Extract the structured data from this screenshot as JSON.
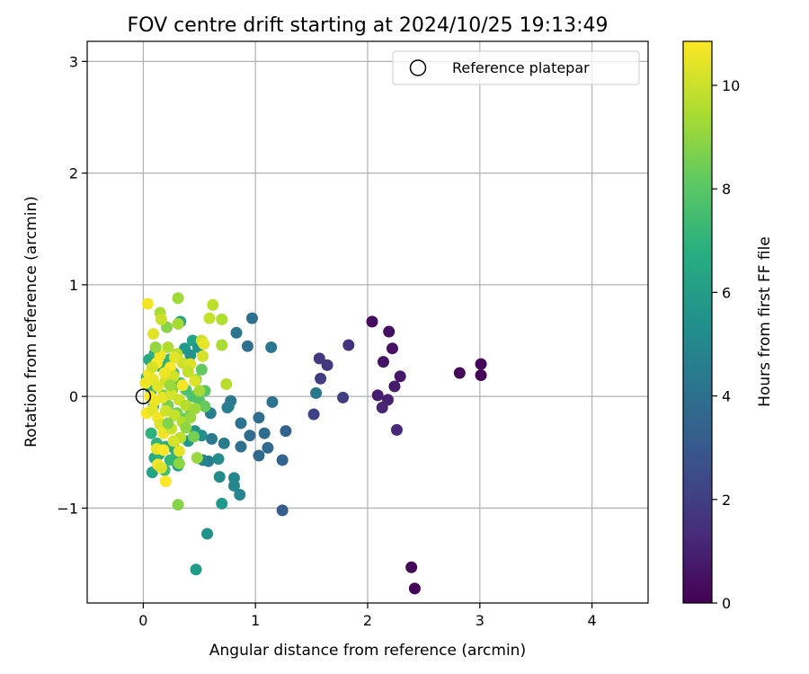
{
  "chart_data": {
    "type": "scatter",
    "title": "FOV centre drift starting at 2024/10/25 19:13:49",
    "xlabel": "Angular distance from reference (arcmin)",
    "ylabel": "Rotation from reference (arcmin)",
    "xlim": [
      -0.5,
      4.5
    ],
    "ylim": [
      -1.85,
      3.18
    ],
    "xticks": [
      0,
      1,
      2,
      3,
      4
    ],
    "yticks": [
      -1,
      0,
      1,
      2,
      3
    ],
    "xtick_labels": [
      "0",
      "1",
      "2",
      "3",
      "4"
    ],
    "ytick_labels": [
      "−1",
      "0",
      "1",
      "2",
      "3"
    ],
    "grid": true,
    "colormap": "viridis",
    "colorbar": {
      "label": "Hours from first FF file",
      "range": [
        0,
        10.85
      ],
      "ticks": [
        0,
        2,
        4,
        6,
        8,
        10
      ],
      "tick_labels": [
        "0",
        "2",
        "4",
        "6",
        "8",
        "10"
      ]
    },
    "reference": {
      "x": 0.0,
      "y": 0.0,
      "label": "Reference platepar",
      "edge_color": "#000000",
      "fill": "none"
    },
    "legend": {
      "placement": "upper right",
      "entries": [
        "Reference platepar"
      ]
    },
    "points": [
      {
        "x": 2.42,
        "y": -1.72,
        "h": 0.1
      },
      {
        "x": 2.39,
        "y": -1.53,
        "h": 0.2
      },
      {
        "x": 3.01,
        "y": 0.19,
        "h": 0.1
      },
      {
        "x": 3.01,
        "y": 0.29,
        "h": 0.15
      },
      {
        "x": 2.82,
        "y": 0.21,
        "h": 0.2
      },
      {
        "x": 2.04,
        "y": 0.67,
        "h": 0.3
      },
      {
        "x": 2.19,
        "y": 0.58,
        "h": 0.4
      },
      {
        "x": 2.22,
        "y": 0.43,
        "h": 0.5
      },
      {
        "x": 2.14,
        "y": 0.31,
        "h": 0.6
      },
      {
        "x": 2.29,
        "y": 0.18,
        "h": 0.7
      },
      {
        "x": 2.24,
        "y": 0.09,
        "h": 0.8
      },
      {
        "x": 2.09,
        "y": 0.01,
        "h": 0.9
      },
      {
        "x": 2.18,
        "y": -0.03,
        "h": 1.0
      },
      {
        "x": 2.13,
        "y": -0.1,
        "h": 1.1
      },
      {
        "x": 2.26,
        "y": -0.3,
        "h": 1.2
      },
      {
        "x": 1.83,
        "y": 0.46,
        "h": 1.6
      },
      {
        "x": 1.57,
        "y": 0.34,
        "h": 1.8
      },
      {
        "x": 1.64,
        "y": 0.28,
        "h": 1.7
      },
      {
        "x": 1.58,
        "y": 0.16,
        "h": 1.9
      },
      {
        "x": 1.78,
        "y": -0.01,
        "h": 2.0
      },
      {
        "x": 1.52,
        "y": -0.16,
        "h": 2.1
      },
      {
        "x": 1.24,
        "y": -1.02,
        "h": 3.2
      },
      {
        "x": 1.27,
        "y": -0.31,
        "h": 3.4
      },
      {
        "x": 1.24,
        "y": -0.57,
        "h": 3.5
      },
      {
        "x": 1.03,
        "y": -0.53,
        "h": 3.6
      },
      {
        "x": 1.11,
        "y": -0.46,
        "h": 3.7
      },
      {
        "x": 1.08,
        "y": -0.33,
        "h": 3.8
      },
      {
        "x": 1.03,
        "y": -0.19,
        "h": 3.9
      },
      {
        "x": 0.95,
        "y": -0.35,
        "h": 3.8
      },
      {
        "x": 0.87,
        "y": -0.45,
        "h": 4.0
      },
      {
        "x": 0.87,
        "y": -0.24,
        "h": 4.1
      },
      {
        "x": 1.14,
        "y": 0.44,
        "h": 4.2
      },
      {
        "x": 1.15,
        "y": -0.05,
        "h": 4.1
      },
      {
        "x": 0.97,
        "y": 0.7,
        "h": 3.9
      },
      {
        "x": 0.93,
        "y": 0.45,
        "h": 4.0
      },
      {
        "x": 0.83,
        "y": 0.57,
        "h": 4.2
      },
      {
        "x": 1.54,
        "y": 0.03,
        "h": 4.3
      },
      {
        "x": 0.78,
        "y": -0.04,
        "h": 4.4
      },
      {
        "x": 0.75,
        "y": -0.1,
        "h": 4.5
      },
      {
        "x": 0.76,
        "y": -0.09,
        "h": 4.6
      },
      {
        "x": 0.72,
        "y": -0.42,
        "h": 4.5
      },
      {
        "x": 0.61,
        "y": -0.38,
        "h": 4.4
      },
      {
        "x": 0.6,
        "y": -0.15,
        "h": 4.7
      },
      {
        "x": 0.58,
        "y": -0.58,
        "h": 4.6
      },
      {
        "x": 0.53,
        "y": -0.57,
        "h": 4.8
      },
      {
        "x": 0.86,
        "y": -0.88,
        "h": 4.9
      },
      {
        "x": 0.81,
        "y": -0.8,
        "h": 5.0
      },
      {
        "x": 0.81,
        "y": -0.73,
        "h": 5.0
      },
      {
        "x": 0.68,
        "y": -0.72,
        "h": 5.2
      },
      {
        "x": 0.67,
        "y": -0.56,
        "h": 5.3
      },
      {
        "x": 0.57,
        "y": -1.23,
        "h": 5.5
      },
      {
        "x": 0.7,
        "y": -0.96,
        "h": 5.8
      },
      {
        "x": 0.47,
        "y": -1.55,
        "h": 6.0
      },
      {
        "x": 0.52,
        "y": -0.35,
        "h": 5.4
      },
      {
        "x": 0.46,
        "y": -0.31,
        "h": 5.6
      },
      {
        "x": 0.4,
        "y": -0.4,
        "h": 5.9
      },
      {
        "x": 0.42,
        "y": 0.37,
        "h": 5.5
      },
      {
        "x": 0.37,
        "y": 0.43,
        "h": 5.8
      },
      {
        "x": 0.44,
        "y": 0.5,
        "h": 6.2
      },
      {
        "x": 0.49,
        "y": 0.44,
        "h": 5.6
      },
      {
        "x": 0.33,
        "y": 0.67,
        "h": 6.4
      },
      {
        "x": 0.31,
        "y": -0.62,
        "h": 6.1
      },
      {
        "x": 0.3,
        "y": -0.52,
        "h": 6.3
      },
      {
        "x": 0.28,
        "y": -0.47,
        "h": 6.5
      },
      {
        "x": 0.08,
        "y": -0.68,
        "h": 6.3
      },
      {
        "x": 0.1,
        "y": -0.55,
        "h": 6.6
      },
      {
        "x": 0.14,
        "y": -0.52,
        "h": 6.8
      },
      {
        "x": 0.07,
        "y": -0.33,
        "h": 6.9
      },
      {
        "x": 0.12,
        "y": -0.42,
        "h": 7.0
      },
      {
        "x": 0.2,
        "y": -0.45,
        "h": 6.7
      },
      {
        "x": 0.24,
        "y": -0.57,
        "h": 7.2
      },
      {
        "x": 0.19,
        "y": -0.66,
        "h": 7.4
      },
      {
        "x": 0.05,
        "y": 0.33,
        "h": 6.5
      },
      {
        "x": 0.1,
        "y": 0.38,
        "h": 6.8
      },
      {
        "x": 0.03,
        "y": 0.17,
        "h": 7.0
      },
      {
        "x": 0.07,
        "y": 0.05,
        "h": 7.1
      },
      {
        "x": 0.09,
        "y": -0.09,
        "h": 7.3
      },
      {
        "x": 0.15,
        "y": 0.27,
        "h": 7.1
      },
      {
        "x": 0.23,
        "y": 0.33,
        "h": 6.9
      },
      {
        "x": 0.27,
        "y": 0.21,
        "h": 7.5
      },
      {
        "x": 0.33,
        "y": 0.12,
        "h": 7.6
      },
      {
        "x": 0.38,
        "y": 0.06,
        "h": 7.7
      },
      {
        "x": 0.44,
        "y": 0.0,
        "h": 7.8
      },
      {
        "x": 0.5,
        "y": -0.04,
        "h": 7.9
      },
      {
        "x": 0.55,
        "y": 0.05,
        "h": 8.0
      },
      {
        "x": 0.52,
        "y": 0.24,
        "h": 8.2
      },
      {
        "x": 0.55,
        "y": -0.09,
        "h": 8.3
      },
      {
        "x": 0.36,
        "y": -0.2,
        "h": 8.1
      },
      {
        "x": 0.42,
        "y": -0.12,
        "h": 8.4
      },
      {
        "x": 0.18,
        "y": 0.01,
        "h": 8.5
      },
      {
        "x": 0.22,
        "y": -0.08,
        "h": 8.6
      },
      {
        "x": 0.26,
        "y": 0.06,
        "h": 8.7
      },
      {
        "x": 0.3,
        "y": -0.15,
        "h": 8.5
      },
      {
        "x": 0.47,
        "y": 0.15,
        "h": 8.8
      },
      {
        "x": 0.21,
        "y": 0.62,
        "h": 8.9
      },
      {
        "x": 0.31,
        "y": -0.97,
        "h": 8.9
      },
      {
        "x": 0.32,
        "y": -0.6,
        "h": 9.0
      },
      {
        "x": 0.48,
        "y": -0.55,
        "h": 9.2
      },
      {
        "x": 0.31,
        "y": 0.88,
        "h": 9.3
      },
      {
        "x": 0.31,
        "y": 0.65,
        "h": 9.4
      },
      {
        "x": 0.7,
        "y": 0.46,
        "h": 9.5
      },
      {
        "x": 0.7,
        "y": 0.69,
        "h": 9.6
      },
      {
        "x": 0.62,
        "y": 0.82,
        "h": 9.8
      },
      {
        "x": 0.59,
        "y": 0.7,
        "h": 9.9
      },
      {
        "x": 0.74,
        "y": 0.11,
        "h": 9.7
      },
      {
        "x": 0.52,
        "y": 0.5,
        "h": 10.0
      },
      {
        "x": 0.53,
        "y": 0.36,
        "h": 10.2
      },
      {
        "x": 0.54,
        "y": 0.47,
        "h": 10.5
      },
      {
        "x": 0.15,
        "y": 0.75,
        "h": 9.5
      },
      {
        "x": 0.16,
        "y": 0.69,
        "h": 10.0
      },
      {
        "x": 0.04,
        "y": 0.83,
        "h": 10.7
      },
      {
        "x": 0.09,
        "y": 0.56,
        "h": 10.4
      },
      {
        "x": 0.22,
        "y": 0.44,
        "h": 9.6
      },
      {
        "x": 0.3,
        "y": 0.38,
        "h": 9.8
      },
      {
        "x": 0.35,
        "y": 0.3,
        "h": 10.1
      },
      {
        "x": 0.42,
        "y": 0.29,
        "h": 10.3
      },
      {
        "x": 0.15,
        "y": 0.37,
        "h": 10.6
      },
      {
        "x": 0.12,
        "y": 0.3,
        "h": 10.8
      },
      {
        "x": 0.05,
        "y": 0.2,
        "h": 10.7
      },
      {
        "x": 0.09,
        "y": 0.15,
        "h": 10.5
      },
      {
        "x": 0.02,
        "y": 0.12,
        "h": 10.6
      },
      {
        "x": 0.13,
        "y": 0.09,
        "h": 10.4
      },
      {
        "x": 0.2,
        "y": 0.14,
        "h": 10.2
      },
      {
        "x": 0.24,
        "y": 0.26,
        "h": 10.8
      },
      {
        "x": 0.27,
        "y": 0.18,
        "h": 10.1
      },
      {
        "x": 0.35,
        "y": 0.1,
        "h": 10.7
      },
      {
        "x": 0.4,
        "y": 0.22,
        "h": 9.9
      },
      {
        "x": 0.46,
        "y": 0.14,
        "h": 10.3
      },
      {
        "x": 0.5,
        "y": 0.05,
        "h": 9.4
      },
      {
        "x": 0.06,
        "y": 0.0,
        "h": 10.8
      },
      {
        "x": 0.1,
        "y": -0.04,
        "h": 10.6
      },
      {
        "x": 0.17,
        "y": -0.01,
        "h": 10.5
      },
      {
        "x": 0.25,
        "y": 0.02,
        "h": 10.2
      },
      {
        "x": 0.32,
        "y": -0.03,
        "h": 10.0
      },
      {
        "x": 0.38,
        "y": -0.08,
        "h": 9.7
      },
      {
        "x": 0.46,
        "y": -0.11,
        "h": 9.3
      },
      {
        "x": 0.03,
        "y": -0.15,
        "h": 10.8
      },
      {
        "x": 0.08,
        "y": -0.12,
        "h": 10.4
      },
      {
        "x": 0.13,
        "y": -0.19,
        "h": 10.7
      },
      {
        "x": 0.2,
        "y": -0.13,
        "h": 10.1
      },
      {
        "x": 0.28,
        "y": -0.17,
        "h": 9.9
      },
      {
        "x": 0.35,
        "y": -0.23,
        "h": 9.6
      },
      {
        "x": 0.42,
        "y": -0.19,
        "h": 9.2
      },
      {
        "x": 0.15,
        "y": -0.25,
        "h": 10.3
      },
      {
        "x": 0.18,
        "y": -0.33,
        "h": 10.6
      },
      {
        "x": 0.25,
        "y": -0.29,
        "h": 10.0
      },
      {
        "x": 0.33,
        "y": -0.37,
        "h": 9.8
      },
      {
        "x": 0.12,
        "y": -0.47,
        "h": 10.5
      },
      {
        "x": 0.18,
        "y": -0.48,
        "h": 10.8
      },
      {
        "x": 0.27,
        "y": -0.4,
        "h": 10.2
      },
      {
        "x": 0.32,
        "y": -0.49,
        "h": 10.4
      },
      {
        "x": 0.13,
        "y": -0.61,
        "h": 10.7
      },
      {
        "x": 0.2,
        "y": -0.76,
        "h": 10.8
      },
      {
        "x": 0.16,
        "y": -0.64,
        "h": 10.3
      },
      {
        "x": 0.08,
        "y": 0.26,
        "h": 10.2
      },
      {
        "x": 0.19,
        "y": 0.21,
        "h": 10.6
      },
      {
        "x": 0.28,
        "y": 0.35,
        "h": 10.4
      },
      {
        "x": 0.11,
        "y": 0.44,
        "h": 9.1
      },
      {
        "x": 0.22,
        "y": -0.24,
        "h": 8.8
      },
      {
        "x": 0.38,
        "y": -0.28,
        "h": 9.0
      },
      {
        "x": 0.45,
        "y": -0.36,
        "h": 8.6
      },
      {
        "x": 0.24,
        "y": 0.1,
        "h": 9.2
      }
    ]
  }
}
